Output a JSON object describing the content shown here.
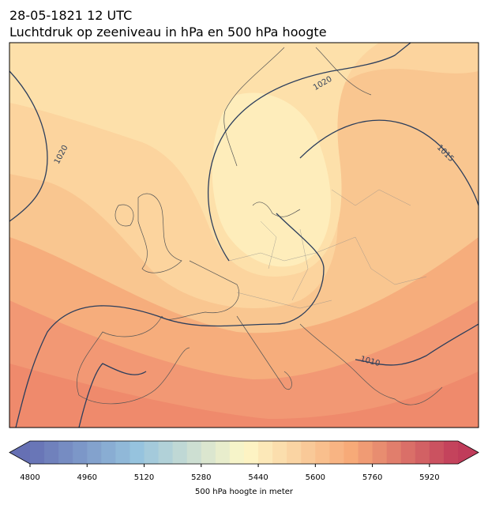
{
  "title": {
    "date": "28-05-1821 12 UTC",
    "subtitle": "Luchtdruk op zeeniveau in hPa en 500 hPa hoogte"
  },
  "contour_labels": [
    "1020",
    "1020",
    "1015",
    "1010"
  ],
  "colorbar": {
    "label": "500 hPa hoogte in meter",
    "lim": [
      4800,
      6000
    ],
    "ticks": [
      4800,
      4960,
      5120,
      5280,
      5440,
      5600,
      5760,
      5920
    ]
  }
}
